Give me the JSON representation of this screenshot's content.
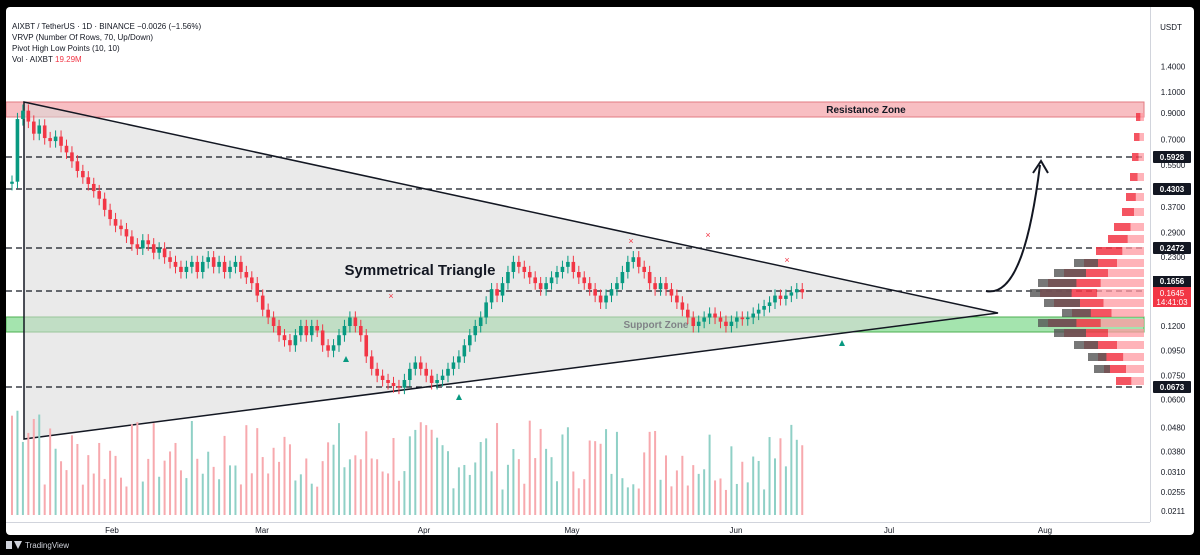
{
  "header": {
    "line1": "AIXBT / TetherUS · 1D · BINANCE  −0.0026 (−1.56%)",
    "line2": "VRVP (Number Of Rows, 70, Up/Down)",
    "line3": "Pivot High Low Points (10, 10)",
    "vol_label": "Vol · AIXBT",
    "vol_value": "19.29M"
  },
  "axis": {
    "currency": "USDT",
    "price_ticks": [
      "1.4000",
      "1.1000",
      "0.9000",
      "0.7000",
      "0.5500",
      "0.3700",
      "0.2900",
      "0.2300",
      "0.1200",
      "0.0950",
      "0.0750",
      "0.0600",
      "0.0480",
      "0.0380",
      "0.0310",
      "0.0255",
      "0.0211"
    ],
    "months": [
      "Feb",
      "Mar",
      "Apr",
      "May",
      "Jun",
      "Jul",
      "Aug"
    ]
  },
  "price_badges": [
    "0.5928",
    "0.4303",
    "0.2472",
    "0.0673"
  ],
  "current_price": {
    "price": "0.1656",
    "value": "0.1645",
    "countdown": "14:41:03"
  },
  "footer": {
    "brand": "TradingView"
  },
  "colors": {
    "up": "#089981",
    "down": "#f23645",
    "resistance": "#f5a3a8",
    "support": "#7ed98c",
    "triangle": "#d9d9d9"
  },
  "chart_data": {
    "type": "candlestick",
    "symbol": "AIXBT / TetherUS",
    "timeframe": "1D",
    "exchange": "BINANCE",
    "log_scale": true,
    "ylim": [
      0.0205,
      1.6
    ],
    "annotations": {
      "pattern": "Symmetrical Triangle",
      "resistance_zone": {
        "label": "Resistance Zone",
        "from": 0.86,
        "to": 1.01
      },
      "support_zone": {
        "label": "Support Zone",
        "from": 0.112,
        "to": 0.127
      },
      "levels": [
        0.5928,
        0.4303,
        0.2472,
        0.1656,
        0.0673
      ],
      "projection_target": 0.5928
    },
    "close_series": [
      0.47,
      0.85,
      0.92,
      0.83,
      0.74,
      0.8,
      0.71,
      0.69,
      0.72,
      0.66,
      0.62,
      0.57,
      0.52,
      0.49,
      0.46,
      0.43,
      0.4,
      0.36,
      0.33,
      0.31,
      0.3,
      0.28,
      0.26,
      0.25,
      0.27,
      0.26,
      0.24,
      0.25,
      0.23,
      0.22,
      0.21,
      0.2,
      0.21,
      0.22,
      0.2,
      0.22,
      0.23,
      0.21,
      0.22,
      0.2,
      0.21,
      0.22,
      0.2,
      0.19,
      0.18,
      0.16,
      0.14,
      0.13,
      0.12,
      0.11,
      0.105,
      0.1,
      0.11,
      0.12,
      0.11,
      0.12,
      0.115,
      0.1,
      0.095,
      0.1,
      0.11,
      0.12,
      0.13,
      0.12,
      0.11,
      0.09,
      0.08,
      0.075,
      0.072,
      0.07,
      0.068,
      0.067,
      0.072,
      0.08,
      0.085,
      0.08,
      0.075,
      0.07,
      0.072,
      0.075,
      0.08,
      0.085,
      0.09,
      0.1,
      0.11,
      0.12,
      0.13,
      0.15,
      0.17,
      0.16,
      0.18,
      0.2,
      0.22,
      0.21,
      0.2,
      0.19,
      0.18,
      0.17,
      0.18,
      0.19,
      0.2,
      0.21,
      0.22,
      0.2,
      0.19,
      0.18,
      0.17,
      0.16,
      0.15,
      0.16,
      0.17,
      0.18,
      0.2,
      0.22,
      0.23,
      0.21,
      0.2,
      0.18,
      0.17,
      0.18,
      0.17,
      0.16,
      0.15,
      0.14,
      0.13,
      0.12,
      0.125,
      0.13,
      0.135,
      0.13,
      0.125,
      0.12,
      0.125,
      0.13,
      0.128,
      0.13,
      0.135,
      0.14,
      0.145,
      0.15,
      0.16,
      0.155,
      0.16,
      0.165,
      0.17,
      0.165
    ],
    "pivot_highs": [
      0.36,
      0.43,
      0.42,
      0.42
    ],
    "pivot_lows": [
      0.087,
      0.0645,
      0.0985
    ]
  }
}
